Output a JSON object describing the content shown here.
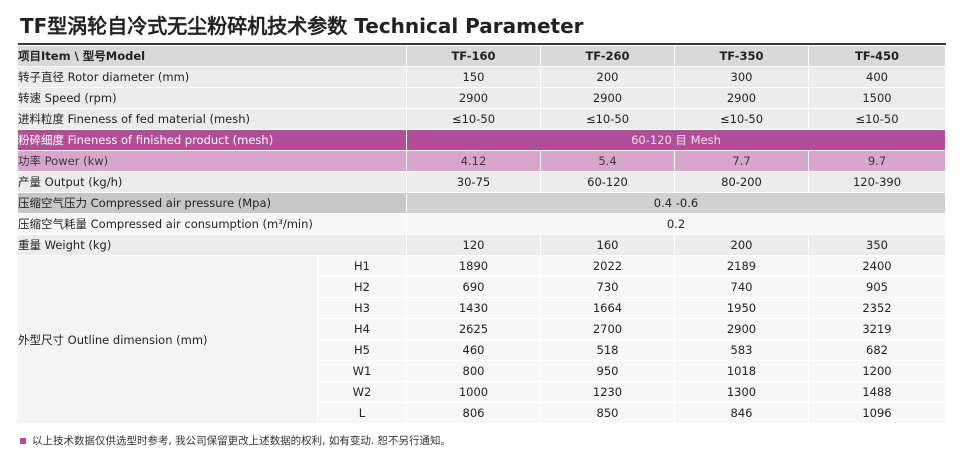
{
  "title": "TF型涡轮自冷式无尘粉碎机技术参数 Technical Parameter",
  "header": {
    "label": "项目Item \\ 型号Model",
    "models": [
      "TF-160",
      "TF-260",
      "TF-350",
      "TF-450"
    ]
  },
  "rows": [
    {
      "label": "转子直径 Rotor diameter (mm)",
      "values": [
        "150",
        "200",
        "300",
        "400"
      ]
    },
    {
      "label": "转速 Speed (rpm)",
      "values": [
        "2900",
        "2900",
        "2900",
        "1500"
      ]
    },
    {
      "label": "进料粒度 Fineness of fed material (mesh)",
      "values": [
        "≤10-50",
        "≤10-50",
        "≤10-50",
        "≤10-50"
      ]
    },
    {
      "label": "粉碎细度 Fineness of finished product (mesh)",
      "merged": "60-120 目 Mesh"
    },
    {
      "label": "功率 Power (kw)",
      "values": [
        "4.12",
        "5.4",
        "7.7",
        "9.7"
      ]
    },
    {
      "label": "产量 Output (kg/h)",
      "values": [
        "30-75",
        "60-120",
        "80-200",
        "120-390"
      ]
    },
    {
      "label": "压缩空气压力 Compressed air pressure (Mpa)",
      "merged": "0.4 -0.6"
    },
    {
      "label": "压缩空气耗量 Compressed air consumption (m³/min)",
      "merged": "0.2"
    },
    {
      "label": "重量 Weight (kg)",
      "values": [
        "120",
        "160",
        "200",
        "350"
      ]
    }
  ],
  "outline": {
    "label": "外型尺寸 Outline dimension (mm)",
    "rows": [
      {
        "sub": "H1",
        "values": [
          "1890",
          "2022",
          "2189",
          "2400"
        ]
      },
      {
        "sub": "H2",
        "values": [
          "690",
          "730",
          "740",
          "905"
        ]
      },
      {
        "sub": "H3",
        "values": [
          "1430",
          "1664",
          "1950",
          "2352"
        ]
      },
      {
        "sub": "H4",
        "values": [
          "2625",
          "2700",
          "2900",
          "3219"
        ]
      },
      {
        "sub": "H5",
        "values": [
          "460",
          "518",
          "583",
          "682"
        ]
      },
      {
        "sub": "W1",
        "values": [
          "800",
          "950",
          "1018",
          "1200"
        ]
      },
      {
        "sub": "W2",
        "values": [
          "1000",
          "1230",
          "1300",
          "1488"
        ]
      },
      {
        "sub": "L",
        "values": [
          "806",
          "850",
          "846",
          "1096"
        ]
      }
    ]
  },
  "footnote": "以上技术数据仅供选型时参考, 我公司保留更改上述数据的权利, 如有变动. 恕不另行通知。",
  "colors": {
    "accent_dark": "#b04e98",
    "accent_light": "#d8a5cd"
  }
}
